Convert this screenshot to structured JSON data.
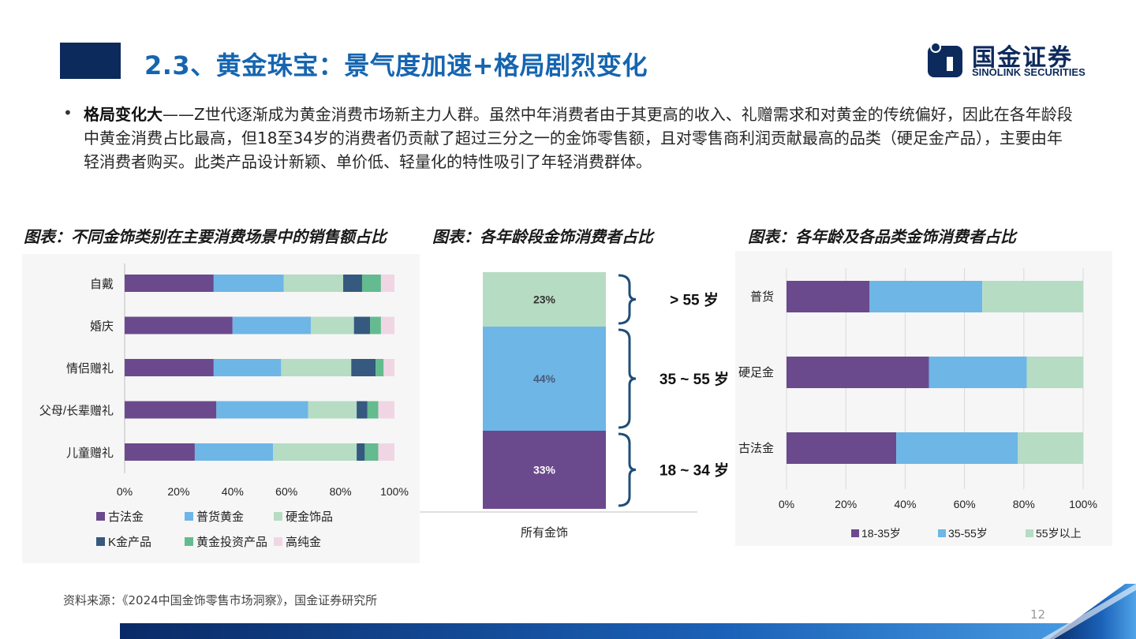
{
  "header": {
    "title": "2.3、黄金珠宝：景气度加速+格局剧烈变化",
    "logo_cn": "国金证券",
    "logo_en": "SINOLINK SECURITIES"
  },
  "body": {
    "bold_lead": "格局变化大",
    "text": "——Z世代逐渐成为黄金消费市场新主力人群。虽然中年消费者由于其更高的收入、礼赠需求和对黄金的传统偏好，因此在各年龄段中黄金消费占比最高，但18至34岁的消费者仍贡献了超过三分之一的金饰零售额，且对零售商利润贡献最高的品类（硬足金产品），主要由年轻消费者购买。此类产品设计新颖、单价低、轻量化的特性吸引了年轻消费群体。"
  },
  "captions": {
    "chart1": "图表：不同金饰类别在主要消费场景中的销售额占比",
    "chart2": "图表：各年龄段金饰消费者占比",
    "chart3": "图表：各年龄及各品类金饰消费者占比"
  },
  "colors": {
    "purple": "#6a4a8c",
    "blue": "#6db6e6",
    "lightgreen": "#b6dcc4",
    "navy": "#35597f",
    "green": "#63bb8f",
    "pink": "#f0d6e4",
    "accent": "#1565b0"
  },
  "chart_data": [
    {
      "type": "bar",
      "orientation": "horizontal-stacked-100",
      "categories": [
        "自戴",
        "婚庆",
        "情侣赠礼",
        "父母/长辈赠礼",
        "儿童赠礼"
      ],
      "xlim": [
        0,
        100
      ],
      "xticks": [
        "0%",
        "20%",
        "40%",
        "60%",
        "80%",
        "100%"
      ],
      "legend_position": "bottom",
      "series": [
        {
          "name": "古法金",
          "color": "#6a4a8c",
          "values": [
            33,
            40,
            33,
            34,
            26
          ]
        },
        {
          "name": "普货黄金",
          "color": "#6db6e6",
          "values": [
            26,
            29,
            25,
            34,
            29
          ]
        },
        {
          "name": "硬金饰品",
          "color": "#b6dcc4",
          "values": [
            22,
            16,
            26,
            18,
            31
          ]
        },
        {
          "name": "K金产品",
          "color": "#35597f",
          "values": [
            7,
            6,
            9,
            4,
            3
          ]
        },
        {
          "name": "黄金投资产品",
          "color": "#63bb8f",
          "values": [
            7,
            4,
            3,
            4,
            5
          ]
        },
        {
          "name": "高纯金",
          "color": "#f0d6e4",
          "values": [
            5,
            5,
            4,
            6,
            6
          ]
        }
      ]
    },
    {
      "type": "bar",
      "orientation": "vertical-stacked-100",
      "categories": [
        "所有金饰"
      ],
      "series": [
        {
          "name": "18 ~ 34 岁",
          "color": "#6a4a8c",
          "values": [
            33
          ],
          "label": "33%"
        },
        {
          "name": "35 ~ 55 岁",
          "color": "#6db6e6",
          "values": [
            44
          ],
          "label": "44%"
        },
        {
          "name": "> 55 岁",
          "color": "#b6dcc4",
          "values": [
            23
          ],
          "label": "23%"
        }
      ]
    },
    {
      "type": "bar",
      "orientation": "horizontal-stacked-100",
      "categories": [
        "普货",
        "硬足金",
        "古法金"
      ],
      "xlim": [
        0,
        100
      ],
      "xticks": [
        "0%",
        "20%",
        "40%",
        "60%",
        "80%",
        "100%"
      ],
      "legend_position": "bottom",
      "series": [
        {
          "name": "18-35岁",
          "color": "#6a4a8c",
          "values": [
            28,
            48,
            37
          ]
        },
        {
          "name": "35-55岁",
          "color": "#6db6e6",
          "values": [
            38,
            33,
            41
          ]
        },
        {
          "name": "55岁以上",
          "color": "#b6dcc4",
          "values": [
            34,
            19,
            22
          ]
        }
      ]
    }
  ],
  "footer": {
    "source": "资料来源：《2024中国金饰零售市场洞察》，国金证券研究所",
    "page_number": "12"
  }
}
